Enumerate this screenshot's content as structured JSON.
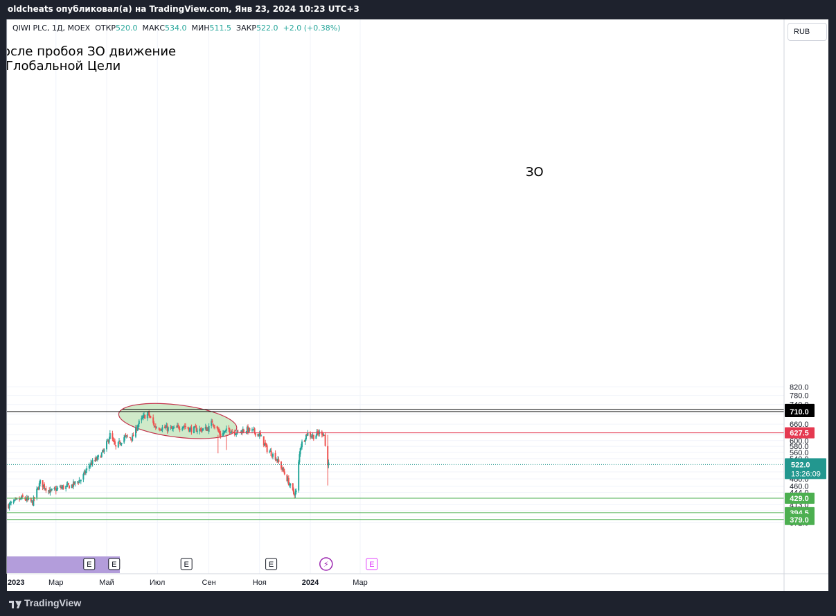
{
  "header": {
    "published": "oldcheats опубликовал(а) на TradingView.com, Янв 23, 2024 10:23 UTC+3"
  },
  "legend": {
    "symbol": "QIWI PLC, 1Д, MOEX",
    "open_label": "ОТКР",
    "open": "520.0",
    "high_label": "МАКС",
    "high": "534.0",
    "low_label": "МИН",
    "low": "511.5",
    "close_label": "ЗАКР",
    "close": "522.0",
    "change": "+2.0 (+0.38%)"
  },
  "currency": "RUB",
  "annotations": {
    "note_line1": "осле пробоя ЗО движение",
    "note_line2": "Глобальной Цели",
    "zone_label": "ЗО"
  },
  "price_label_countdown": "13:26:09",
  "footer": {
    "brand": "TradingView"
  },
  "colors": {
    "up": "#26a69a",
    "down": "#ef5350",
    "ellipse_fill": "#c8e6c0",
    "ellipse_stroke": "#c2334b",
    "green_line": "#4caf50",
    "red_line": "#e53950",
    "current": "#22978f"
  },
  "chart_data": {
    "type": "candlestick",
    "scale": "log",
    "ylim": [
      370,
      860
    ],
    "x_ticks": [
      "2023",
      "Мар",
      "Май",
      "Июл",
      "Сен",
      "Ноя",
      "2024",
      "Мар"
    ],
    "y_ticks": [
      820.0,
      780.0,
      740.0,
      700.0,
      660.0,
      620.0,
      600.0,
      580.0,
      560.0,
      540.0,
      500.0,
      480.0,
      460.0,
      444.0,
      413.0,
      399.0,
      385.0,
      372.0
    ],
    "levels": [
      {
        "value": 719.0,
        "color": "#000000",
        "label": "719.0"
      },
      {
        "value": 710.0,
        "color": "#000000",
        "label": "710.0"
      },
      {
        "value": 627.5,
        "color": "#e53950",
        "label": "627.5"
      },
      {
        "value": 522.0,
        "color": "#22978f",
        "label": "522.0"
      },
      {
        "value": 429.0,
        "color": "#4caf50",
        "label": "429.0"
      },
      {
        "value": 394.5,
        "color": "#4caf50",
        "label": "394.5"
      },
      {
        "value": 379.0,
        "color": "#4caf50",
        "label": "379.0"
      }
    ],
    "event_markers": [
      "E",
      "E",
      "E",
      "E",
      "⚡",
      "E"
    ],
    "close_path": [
      [
        "2023-01-03",
        412
      ],
      [
        "2023-01-20",
        430
      ],
      [
        "2023-02-01",
        418
      ],
      [
        "2023-02-10",
        470
      ],
      [
        "2023-02-22",
        445
      ],
      [
        "2023-03-05",
        455
      ],
      [
        "2023-03-20",
        462
      ],
      [
        "2023-04-01",
        480
      ],
      [
        "2023-04-10",
        520
      ],
      [
        "2023-04-20",
        540
      ],
      [
        "2023-04-28",
        565
      ],
      [
        "2023-05-05",
        620
      ],
      [
        "2023-05-12",
        575
      ],
      [
        "2023-05-22",
        612
      ],
      [
        "2023-06-01",
        610
      ],
      [
        "2023-06-08",
        660
      ],
      [
        "2023-06-15",
        690
      ],
      [
        "2023-06-20",
        700
      ],
      [
        "2023-06-28",
        650
      ],
      [
        "2023-07-10",
        645
      ],
      [
        "2023-07-20",
        640
      ],
      [
        "2023-08-01",
        655
      ],
      [
        "2023-08-10",
        640
      ],
      [
        "2023-08-25",
        640
      ],
      [
        "2023-09-01",
        645
      ],
      [
        "2023-09-05",
        670
      ],
      [
        "2023-09-15",
        620
      ],
      [
        "2023-09-25",
        640
      ],
      [
        "2023-10-05",
        628
      ],
      [
        "2023-10-15",
        640
      ],
      [
        "2023-10-25",
        632
      ],
      [
        "2023-11-01",
        620
      ],
      [
        "2023-11-10",
        570
      ],
      [
        "2023-11-20",
        545
      ],
      [
        "2023-11-28",
        510
      ],
      [
        "2023-12-05",
        475
      ],
      [
        "2023-12-12",
        440
      ],
      [
        "2023-12-15",
        445
      ],
      [
        "2023-12-20",
        580
      ],
      [
        "2023-12-28",
        625
      ],
      [
        "2024-01-05",
        615
      ],
      [
        "2024-01-10",
        625
      ],
      [
        "2024-01-15",
        630
      ],
      [
        "2024-01-18",
        620
      ],
      [
        "2024-01-20",
        540
      ],
      [
        "2024-01-23",
        522
      ]
    ]
  }
}
